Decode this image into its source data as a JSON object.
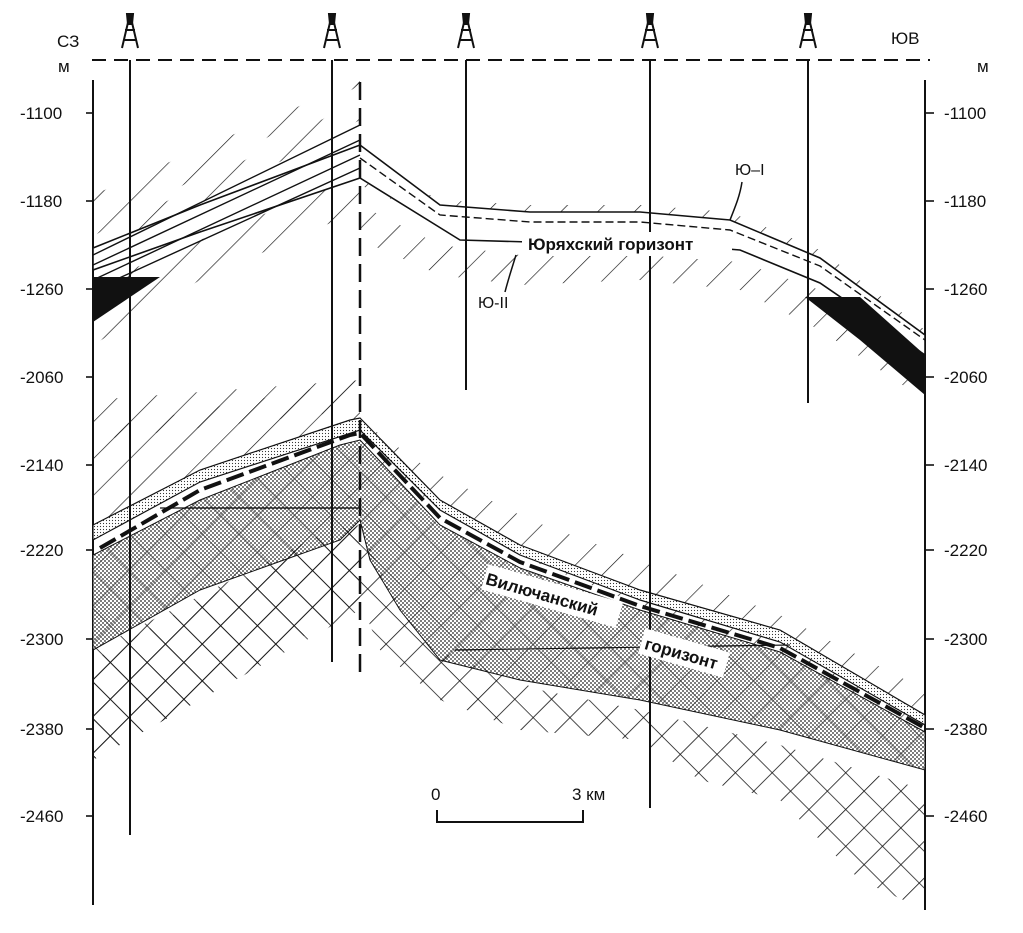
{
  "header": {
    "left_direction": "СЗ",
    "right_direction": "ЮВ",
    "left_unit": "м",
    "right_unit": "м"
  },
  "depth_scale": {
    "left_ticks": [
      "-1100",
      "-1180",
      "-1260",
      "-2060",
      "-2140",
      "-2220",
      "-2300",
      "-2380",
      "-2460"
    ],
    "right_ticks": [
      "-1100",
      "-1180",
      "-1260",
      "-2060",
      "-2140",
      "-2220",
      "-2300",
      "-2380",
      "-2460"
    ]
  },
  "labels": {
    "horizon_ju1": "Ю–I",
    "horizon_ju2": "Ю-II",
    "jurakhsky": "Юряхский горизонт",
    "vilyuchansky_1": "Вилючанский",
    "vilyuchansky_2": "горизонт"
  },
  "scale_bar": {
    "start": "0",
    "end": "3 км"
  },
  "wells": {
    "count": 5,
    "symbol": "drilling-rig-icon"
  },
  "colors": {
    "ink": "#111111",
    "paper": "#ffffff"
  }
}
